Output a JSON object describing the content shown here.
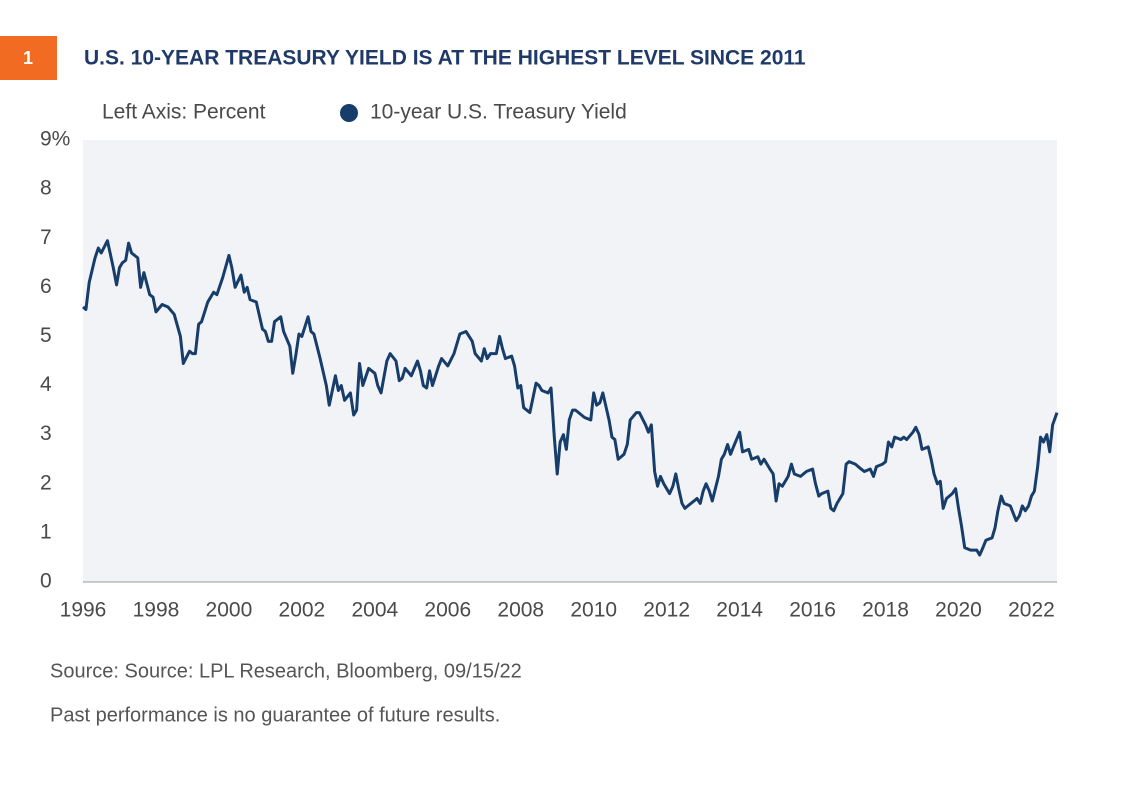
{
  "chart_data": {
    "type": "line",
    "badge": "1",
    "title": "U.S. 10-YEAR TREASURY YIELD IS AT THE HIGHEST LEVEL SINCE 2011",
    "y_axis_label": "Left Axis: Percent",
    "source": "Source: Source: LPL Research, Bloomberg,  09/15/22",
    "note": "Past performance is no guarantee of future results.",
    "x": [
      1996.0,
      1996.08,
      1996.17,
      1996.33,
      1996.42,
      1996.5,
      1996.67,
      1996.83,
      1996.92,
      1997.0,
      1997.08,
      1997.17,
      1997.25,
      1997.33,
      1997.5,
      1997.58,
      1997.67,
      1997.83,
      1997.92,
      1998.0,
      1998.17,
      1998.33,
      1998.5,
      1998.67,
      1998.75,
      1998.92,
      1999.0,
      1999.08,
      1999.17,
      1999.25,
      1999.42,
      1999.58,
      1999.67,
      1999.83,
      2000.0,
      2000.08,
      2000.17,
      2000.33,
      2000.42,
      2000.5,
      2000.58,
      2000.75,
      2000.92,
      2001.0,
      2001.08,
      2001.17,
      2001.25,
      2001.42,
      2001.5,
      2001.67,
      2001.75,
      2001.83,
      2001.92,
      2002.0,
      2002.17,
      2002.25,
      2002.33,
      2002.5,
      2002.67,
      2002.75,
      2002.92,
      2003.0,
      2003.08,
      2003.17,
      2003.33,
      2003.42,
      2003.5,
      2003.58,
      2003.67,
      2003.83,
      2004.0,
      2004.08,
      2004.17,
      2004.33,
      2004.42,
      2004.58,
      2004.67,
      2004.75,
      2004.83,
      2005.0,
      2005.17,
      2005.25,
      2005.33,
      2005.42,
      2005.5,
      2005.58,
      2005.75,
      2005.83,
      2006.0,
      2006.17,
      2006.33,
      2006.5,
      2006.67,
      2006.75,
      2006.92,
      2007.0,
      2007.08,
      2007.17,
      2007.33,
      2007.42,
      2007.5,
      2007.58,
      2007.75,
      2007.83,
      2007.92,
      2008.0,
      2008.08,
      2008.25,
      2008.42,
      2008.5,
      2008.58,
      2008.75,
      2008.83,
      2008.92,
      2009.0,
      2009.08,
      2009.17,
      2009.25,
      2009.33,
      2009.42,
      2009.5,
      2009.75,
      2009.92,
      2010.0,
      2010.08,
      2010.17,
      2010.25,
      2010.42,
      2010.5,
      2010.58,
      2010.67,
      2010.83,
      2010.92,
      2011.0,
      2011.17,
      2011.25,
      2011.42,
      2011.5,
      2011.58,
      2011.67,
      2011.75,
      2011.83,
      2011.92,
      2012.0,
      2012.08,
      2012.17,
      2012.25,
      2012.33,
      2012.42,
      2012.5,
      2012.58,
      2012.75,
      2012.83,
      2012.92,
      2013.0,
      2013.08,
      2013.17,
      2013.25,
      2013.42,
      2013.5,
      2013.58,
      2013.67,
      2013.75,
      2013.83,
      2014.0,
      2014.08,
      2014.25,
      2014.33,
      2014.5,
      2014.58,
      2014.67,
      2014.83,
      2014.92,
      2015.0,
      2015.08,
      2015.17,
      2015.25,
      2015.33,
      2015.42,
      2015.5,
      2015.67,
      2015.83,
      2016.0,
      2016.08,
      2016.17,
      2016.25,
      2016.42,
      2016.5,
      2016.58,
      2016.67,
      2016.83,
      2016.92,
      2017.0,
      2017.17,
      2017.33,
      2017.42,
      2017.58,
      2017.67,
      2017.75,
      2017.92,
      2018.0,
      2018.08,
      2018.17,
      2018.25,
      2018.42,
      2018.5,
      2018.58,
      2018.75,
      2018.83,
      2018.92,
      2019.0,
      2019.17,
      2019.25,
      2019.33,
      2019.42,
      2019.5,
      2019.58,
      2019.67,
      2019.83,
      2019.92,
      2020.0,
      2020.08,
      2020.17,
      2020.33,
      2020.5,
      2020.58,
      2020.67,
      2020.75,
      2020.92,
      2021.0,
      2021.08,
      2021.17,
      2021.25,
      2021.42,
      2021.58,
      2021.67,
      2021.75,
      2021.83,
      2021.92,
      2022.0,
      2022.08,
      2022.17,
      2022.25,
      2022.33,
      2022.42,
      2022.5,
      2022.58,
      2022.7
    ],
    "series": [
      {
        "name": "10-year U.S. Treasury Yield",
        "color": "#173d6a",
        "values": [
          5.6,
          5.55,
          6.1,
          6.6,
          6.8,
          6.7,
          6.95,
          6.4,
          6.05,
          6.4,
          6.5,
          6.55,
          6.9,
          6.7,
          6.6,
          6.0,
          6.3,
          5.85,
          5.8,
          5.5,
          5.65,
          5.6,
          5.45,
          5.0,
          4.45,
          4.7,
          4.65,
          4.65,
          5.25,
          5.3,
          5.7,
          5.9,
          5.85,
          6.2,
          6.65,
          6.4,
          6.0,
          6.25,
          5.9,
          6.0,
          5.75,
          5.7,
          5.15,
          5.1,
          4.9,
          4.9,
          5.3,
          5.4,
          5.1,
          4.8,
          4.25,
          4.6,
          5.05,
          5.0,
          5.4,
          5.1,
          5.05,
          4.55,
          4.0,
          3.6,
          4.2,
          3.9,
          4.0,
          3.7,
          3.85,
          3.4,
          3.5,
          4.45,
          4.0,
          4.35,
          4.25,
          4.0,
          3.85,
          4.5,
          4.65,
          4.5,
          4.1,
          4.15,
          4.35,
          4.2,
          4.5,
          4.3,
          4.0,
          3.95,
          4.3,
          4.0,
          4.4,
          4.55,
          4.4,
          4.65,
          5.05,
          5.1,
          4.9,
          4.65,
          4.5,
          4.75,
          4.55,
          4.65,
          4.65,
          5.0,
          4.75,
          4.55,
          4.6,
          4.4,
          3.95,
          4.0,
          3.55,
          3.45,
          4.05,
          4.0,
          3.9,
          3.85,
          3.95,
          2.95,
          2.2,
          2.85,
          3.0,
          2.7,
          3.3,
          3.5,
          3.5,
          3.35,
          3.3,
          3.85,
          3.6,
          3.65,
          3.85,
          3.3,
          2.95,
          2.9,
          2.5,
          2.6,
          2.8,
          3.3,
          3.45,
          3.45,
          3.2,
          3.05,
          3.2,
          2.25,
          1.95,
          2.15,
          2.0,
          1.9,
          1.8,
          1.95,
          2.2,
          1.9,
          1.6,
          1.5,
          1.55,
          1.65,
          1.7,
          1.6,
          1.85,
          2.0,
          1.85,
          1.65,
          2.15,
          2.5,
          2.6,
          2.8,
          2.6,
          2.75,
          3.05,
          2.65,
          2.7,
          2.5,
          2.55,
          2.4,
          2.5,
          2.3,
          2.2,
          1.65,
          2.0,
          1.95,
          2.05,
          2.15,
          2.4,
          2.2,
          2.15,
          2.25,
          2.3,
          2.0,
          1.75,
          1.8,
          1.85,
          1.5,
          1.45,
          1.6,
          1.8,
          2.4,
          2.45,
          2.4,
          2.3,
          2.25,
          2.3,
          2.15,
          2.35,
          2.4,
          2.45,
          2.85,
          2.75,
          2.95,
          2.9,
          2.95,
          2.9,
          3.05,
          3.15,
          3.0,
          2.7,
          2.75,
          2.5,
          2.2,
          2.0,
          2.05,
          1.5,
          1.7,
          1.8,
          1.9,
          1.5,
          1.15,
          0.7,
          0.65,
          0.65,
          0.55,
          0.7,
          0.85,
          0.9,
          1.1,
          1.45,
          1.75,
          1.6,
          1.55,
          1.25,
          1.35,
          1.55,
          1.45,
          1.55,
          1.75,
          1.85,
          2.35,
          2.95,
          2.85,
          3.0,
          2.65,
          3.2,
          3.45
        ]
      }
    ],
    "xlim": [
      1996,
      2022.7
    ],
    "xticks": [
      1996,
      1998,
      2000,
      2002,
      2004,
      2006,
      2008,
      2010,
      2012,
      2014,
      2016,
      2018,
      2020,
      2022
    ],
    "ylim": [
      0,
      9
    ],
    "yticks": [
      0,
      1,
      2,
      3,
      4,
      5,
      6,
      7,
      8,
      {
        "value": 9,
        "label": "9%"
      }
    ],
    "grid": false,
    "badge_color": "#f26b22",
    "plot_background": "#f2f3f6"
  }
}
